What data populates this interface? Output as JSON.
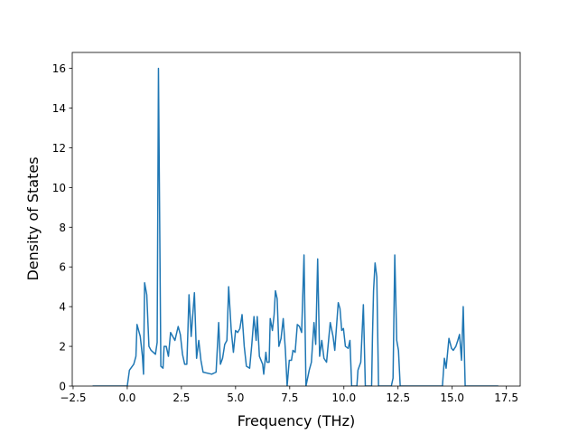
{
  "chart_data": {
    "type": "line",
    "x_label": "Frequency (THz)",
    "y_label": "Density of States",
    "xlim": [
      -2.54,
      18.14
    ],
    "ylim": [
      0,
      16.8
    ],
    "xticks": [
      {
        "value": -2.5,
        "label": "−2.5"
      },
      {
        "value": 0,
        "label": "0.0"
      },
      2.5,
      {
        "value": 5,
        "label": "5.0"
      },
      7.5,
      {
        "value": 10,
        "label": "10.0"
      },
      12.5,
      {
        "value": 15,
        "label": "15.0"
      },
      17.5
    ],
    "yticks": [
      0,
      2,
      4,
      6,
      8,
      10,
      12,
      14,
      16
    ],
    "series": [
      {
        "color": "#1f77b4",
        "x": [
          -1.6,
          0.0,
          0.1,
          0.3,
          0.4,
          0.45,
          0.6,
          0.7,
          0.75,
          0.8,
          0.9,
          1.0,
          1.1,
          1.3,
          1.38,
          1.44,
          1.55,
          1.65,
          1.7,
          1.8,
          1.9,
          2.0,
          2.2,
          2.35,
          2.45,
          2.55,
          2.65,
          2.75,
          2.8,
          2.85,
          2.95,
          3.1,
          3.2,
          3.3,
          3.4,
          3.5,
          3.9,
          4.1,
          4.22,
          4.3,
          4.4,
          4.5,
          4.6,
          4.68,
          4.8,
          4.9,
          5.0,
          5.1,
          5.2,
          5.3,
          5.4,
          5.5,
          5.65,
          5.75,
          5.85,
          5.95,
          6.0,
          6.1,
          6.25,
          6.3,
          6.4,
          6.45,
          6.55,
          6.6,
          6.7,
          6.78,
          6.84,
          6.92,
          7.0,
          7.1,
          7.2,
          7.3,
          7.38,
          7.48,
          7.58,
          7.65,
          7.75,
          7.85,
          7.95,
          8.05,
          8.16,
          8.25,
          8.4,
          8.5,
          8.62,
          8.7,
          8.79,
          8.88,
          8.98,
          9.08,
          9.2,
          9.37,
          9.5,
          9.58,
          9.74,
          9.82,
          9.9,
          9.98,
          10.07,
          10.2,
          10.28,
          10.36,
          10.6,
          10.65,
          10.78,
          10.9,
          10.99,
          11.28,
          11.32,
          11.37,
          11.44,
          11.52,
          11.6,
          12.19,
          12.27,
          12.35,
          12.44,
          12.52,
          12.6,
          14.55,
          14.64,
          14.72,
          14.85,
          14.97,
          15.05,
          15.17,
          15.26,
          15.34,
          15.43,
          15.51,
          15.6,
          17.13
        ],
        "values": [
          0,
          0,
          0.8,
          1.1,
          1.5,
          3.1,
          2.5,
          1.5,
          0.6,
          5.2,
          4.6,
          2.0,
          1.8,
          1.6,
          2.2,
          16.0,
          1.0,
          0.9,
          2.0,
          2.0,
          1.5,
          2.7,
          2.3,
          3.0,
          2.6,
          1.6,
          1.1,
          1.1,
          2.8,
          4.6,
          2.5,
          4.7,
          1.4,
          2.3,
          1.3,
          0.7,
          0.6,
          0.7,
          3.2,
          1.1,
          1.4,
          2.1,
          2.3,
          5.0,
          2.8,
          1.7,
          2.8,
          2.7,
          2.9,
          3.6,
          2.0,
          1.0,
          0.9,
          2.1,
          3.5,
          2.3,
          3.5,
          1.5,
          1.1,
          0.6,
          1.7,
          1.2,
          1.2,
          3.4,
          2.8,
          3.6,
          4.8,
          4.4,
          2.0,
          2.4,
          3.4,
          1.8,
          0,
          1.3,
          1.3,
          1.8,
          1.7,
          3.1,
          3.0,
          2.7,
          6.6,
          0,
          0.8,
          1.2,
          3.2,
          2.1,
          6.4,
          1.5,
          2.3,
          1.4,
          1.2,
          3.2,
          2.5,
          1.8,
          4.2,
          3.9,
          2.8,
          2.9,
          2.0,
          1.9,
          2.3,
          0,
          0,
          0.8,
          1.2,
          4.1,
          0,
          0,
          2.5,
          4.8,
          6.2,
          5.5,
          0,
          0,
          0.4,
          6.6,
          2.3,
          1.8,
          0,
          0,
          1.4,
          0.9,
          2.4,
          1.9,
          1.8,
          2.0,
          2.3,
          2.6,
          1.3,
          4.0,
          0,
          0
        ]
      }
    ]
  }
}
